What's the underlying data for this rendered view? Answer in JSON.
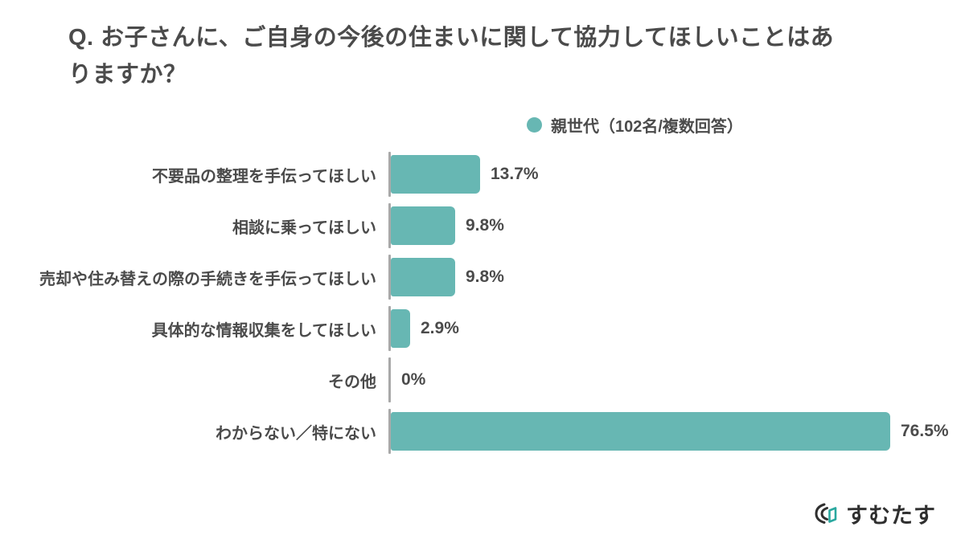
{
  "title": {
    "full": "Q. お子さんに、ご自身の今後の住まいに関して協力してほしいことはありますか？",
    "lines": [
      "Q. お子さんに、ご自身の今後の住まいに関して協力してほしいことはあ",
      "りますか？"
    ]
  },
  "legend": {
    "label": "親世代（102名/複数回答）"
  },
  "chart_data": {
    "type": "bar",
    "orientation": "horizontal",
    "title": "Q. お子さんに、ご自身の今後の住まいに関して協力してほしいことはありますか？",
    "legend": "親世代（102名/複数回答）",
    "legend_position": "top",
    "categories": [
      "不要品の整理を手伝ってほしい",
      "相談に乗ってほしい",
      "売却や住み替えの際の手続きを手伝ってほしい",
      "具体的な情報収集をしてほしい",
      "その他",
      "わからない／特にない"
    ],
    "values": [
      13.7,
      9.8,
      9.8,
      2.9,
      0,
      76.5
    ],
    "value_labels": [
      "13.7%",
      "9.8%",
      "9.8%",
      "2.9%",
      "0%",
      "76.5%"
    ],
    "unit": "%",
    "xlim": [
      0,
      80
    ],
    "grid": false,
    "bar_color": "#67b7b3"
  },
  "logo": {
    "text": "すむたす"
  },
  "colors": {
    "bar": "#67b7b3",
    "text": "#4b4b4b",
    "axis": "#a9a9a9",
    "logo_text": "#2f2f2f",
    "logo_accent": "#2aa89f",
    "background": "#ffffff"
  }
}
